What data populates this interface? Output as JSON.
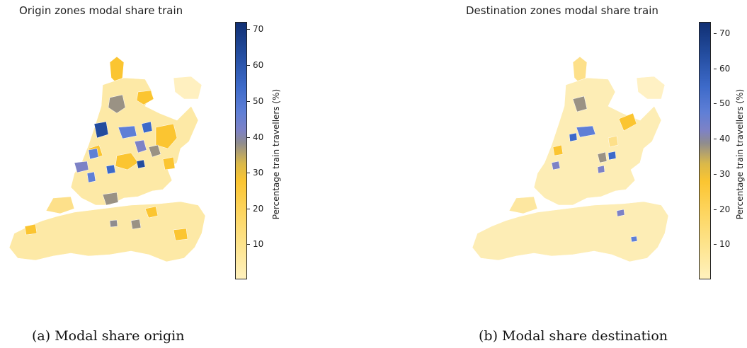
{
  "panels": [
    {
      "title": "Origin zones modal share train",
      "colorbar": {
        "label": "Percentage train travellers (%)",
        "ticks": [
          "10",
          "20",
          "30",
          "40",
          "50",
          "60",
          "70"
        ],
        "min": 0,
        "max": 72
      },
      "caption": "(a) Modal share origin"
    },
    {
      "title": "Destination zones modal share train",
      "colorbar": {
        "label": "Percentage train travellers (%)",
        "ticks": [
          "10",
          "20",
          "30",
          "40",
          "50",
          "60",
          "70"
        ],
        "min": 0,
        "max": 73
      },
      "caption": "(b) Modal share destination"
    }
  ],
  "colors": {
    "low": "#fff1bd",
    "mid_low": "#fbc531",
    "mid": "#8f8c8f",
    "mid_high": "#5f7fd6",
    "high": "#102f73"
  }
}
